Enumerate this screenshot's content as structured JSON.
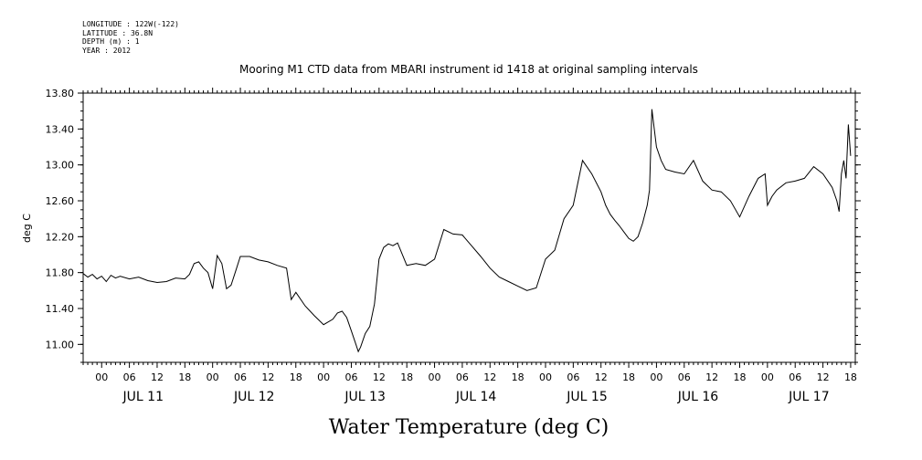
{
  "metadata": {
    "longitude": "LONGITUDE : 122W(-122)",
    "latitude": "LATITUDE : 36.8N",
    "depth": "DEPTH (m) : 1",
    "year": "YEAR : 2012"
  },
  "chart_data": {
    "type": "line",
    "title": "Mooring M1 CTD data from MBARI instrument id 1418 at original sampling intervals",
    "xlabel": "Water Temperature (deg C)",
    "ylabel": "deg C",
    "ylim": [
      10.8,
      13.8
    ],
    "yticks": [
      "13.80",
      "13.40",
      "13.00",
      "12.60",
      "12.20",
      "11.80",
      "11.40",
      "11.00"
    ],
    "xlim_hours": [
      -4,
      163
    ],
    "x_hour_ticks": [
      "00",
      "06",
      "12",
      "18"
    ],
    "x_days": [
      "JUL 11",
      "JUL 12",
      "JUL 13",
      "JUL 14",
      "JUL 15",
      "JUL 16",
      "JUL 17"
    ],
    "grid": false,
    "series": [
      {
        "x_hours": [
          -4,
          -3,
          -2,
          -1,
          0,
          1,
          2,
          3,
          4,
          6,
          8,
          10,
          12,
          14,
          16,
          18,
          19,
          20,
          21,
          22,
          23,
          24,
          25,
          26,
          27,
          28,
          29,
          30,
          32,
          34,
          36,
          38,
          40,
          41,
          42,
          44,
          46,
          48,
          50,
          51,
          52,
          53,
          54,
          55,
          55.5,
          56,
          57,
          58,
          59,
          60,
          61,
          62,
          63,
          64,
          66,
          68,
          70,
          72,
          74,
          76,
          78,
          80,
          82,
          84,
          86,
          88,
          90,
          92,
          94,
          96,
          98,
          100,
          102,
          104,
          106,
          108,
          109,
          110,
          111,
          112,
          113,
          114,
          115,
          116,
          117,
          118,
          118.5,
          119,
          120,
          121,
          122,
          124,
          126,
          128,
          130,
          132,
          134,
          136,
          138,
          140,
          142,
          143.5,
          144,
          145,
          146,
          148,
          150,
          152,
          154,
          156,
          158,
          159,
          159.5,
          160,
          160.5,
          161,
          161.5,
          162
        ],
        "values": [
          11.79,
          11.75,
          11.78,
          11.73,
          11.76,
          11.7,
          11.77,
          11.74,
          11.76,
          11.73,
          11.75,
          11.71,
          11.69,
          11.7,
          11.74,
          11.73,
          11.78,
          11.9,
          11.92,
          11.85,
          11.8,
          11.62,
          11.99,
          11.9,
          11.62,
          11.66,
          11.82,
          11.98,
          11.98,
          11.94,
          11.92,
          11.88,
          11.85,
          11.5,
          11.58,
          11.43,
          11.32,
          11.22,
          11.28,
          11.35,
          11.37,
          11.3,
          11.15,
          11.0,
          10.92,
          10.97,
          11.12,
          11.2,
          11.45,
          11.95,
          12.08,
          12.12,
          12.1,
          12.13,
          11.88,
          11.9,
          11.88,
          11.95,
          12.28,
          12.23,
          12.22,
          12.1,
          11.98,
          11.85,
          11.75,
          11.7,
          11.65,
          11.6,
          11.63,
          11.95,
          12.05,
          12.4,
          12.55,
          13.05,
          12.9,
          12.7,
          12.55,
          12.45,
          12.38,
          12.32,
          12.25,
          12.18,
          12.15,
          12.2,
          12.35,
          12.55,
          12.72,
          13.62,
          13.2,
          13.05,
          12.95,
          12.92,
          12.9,
          13.05,
          12.82,
          12.72,
          12.7,
          12.6,
          12.42,
          12.65,
          12.85,
          12.9,
          12.55,
          12.65,
          12.72,
          12.8,
          12.82,
          12.85,
          12.98,
          12.9,
          12.75,
          12.6,
          12.48,
          12.9,
          13.05,
          12.85,
          13.45,
          13.1
        ]
      }
    ]
  }
}
